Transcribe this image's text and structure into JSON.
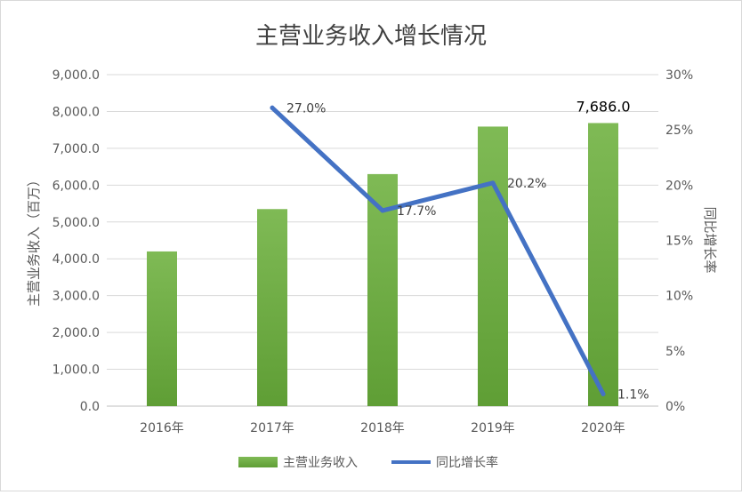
{
  "chart_data": {
    "type": "bar+line",
    "title": "主营业务收入增长情况",
    "categories": [
      "2016年",
      "2017年",
      "2018年",
      "2019年",
      "2020年"
    ],
    "series": [
      {
        "name": "主营业务收入",
        "type": "bar",
        "axis": "left",
        "values": [
          4200,
          5350,
          6300,
          7590,
          7686.0
        ],
        "data_labels": [
          "",
          "",
          "",
          "",
          "7,686.0"
        ],
        "color": "#70ad47"
      },
      {
        "name": "同比增长率",
        "type": "line",
        "axis": "right",
        "values": [
          null,
          27.0,
          17.7,
          20.2,
          1.1
        ],
        "data_labels": [
          "",
          "27.0%",
          "17.7%",
          "20.2%",
          "1.1%"
        ],
        "color": "#4472c4"
      }
    ],
    "ylabel_left": "主营业务收入（百万）",
    "ylabel_right": "同比增长率",
    "ylim_left": [
      0,
      9000
    ],
    "ylim_right": [
      0,
      30
    ],
    "yticks_left": [
      "0.0",
      "1,000.0",
      "2,000.0",
      "3,000.0",
      "4,000.0",
      "5,000.0",
      "6,000.0",
      "7,000.0",
      "8,000.0",
      "9,000.0"
    ],
    "yticks_right": [
      "0%",
      "5%",
      "10%",
      "15%",
      "20%",
      "25%",
      "30%"
    ],
    "grid": true,
    "legend_position": "bottom",
    "legend": [
      "主营业务收入",
      "同比增长率"
    ]
  }
}
